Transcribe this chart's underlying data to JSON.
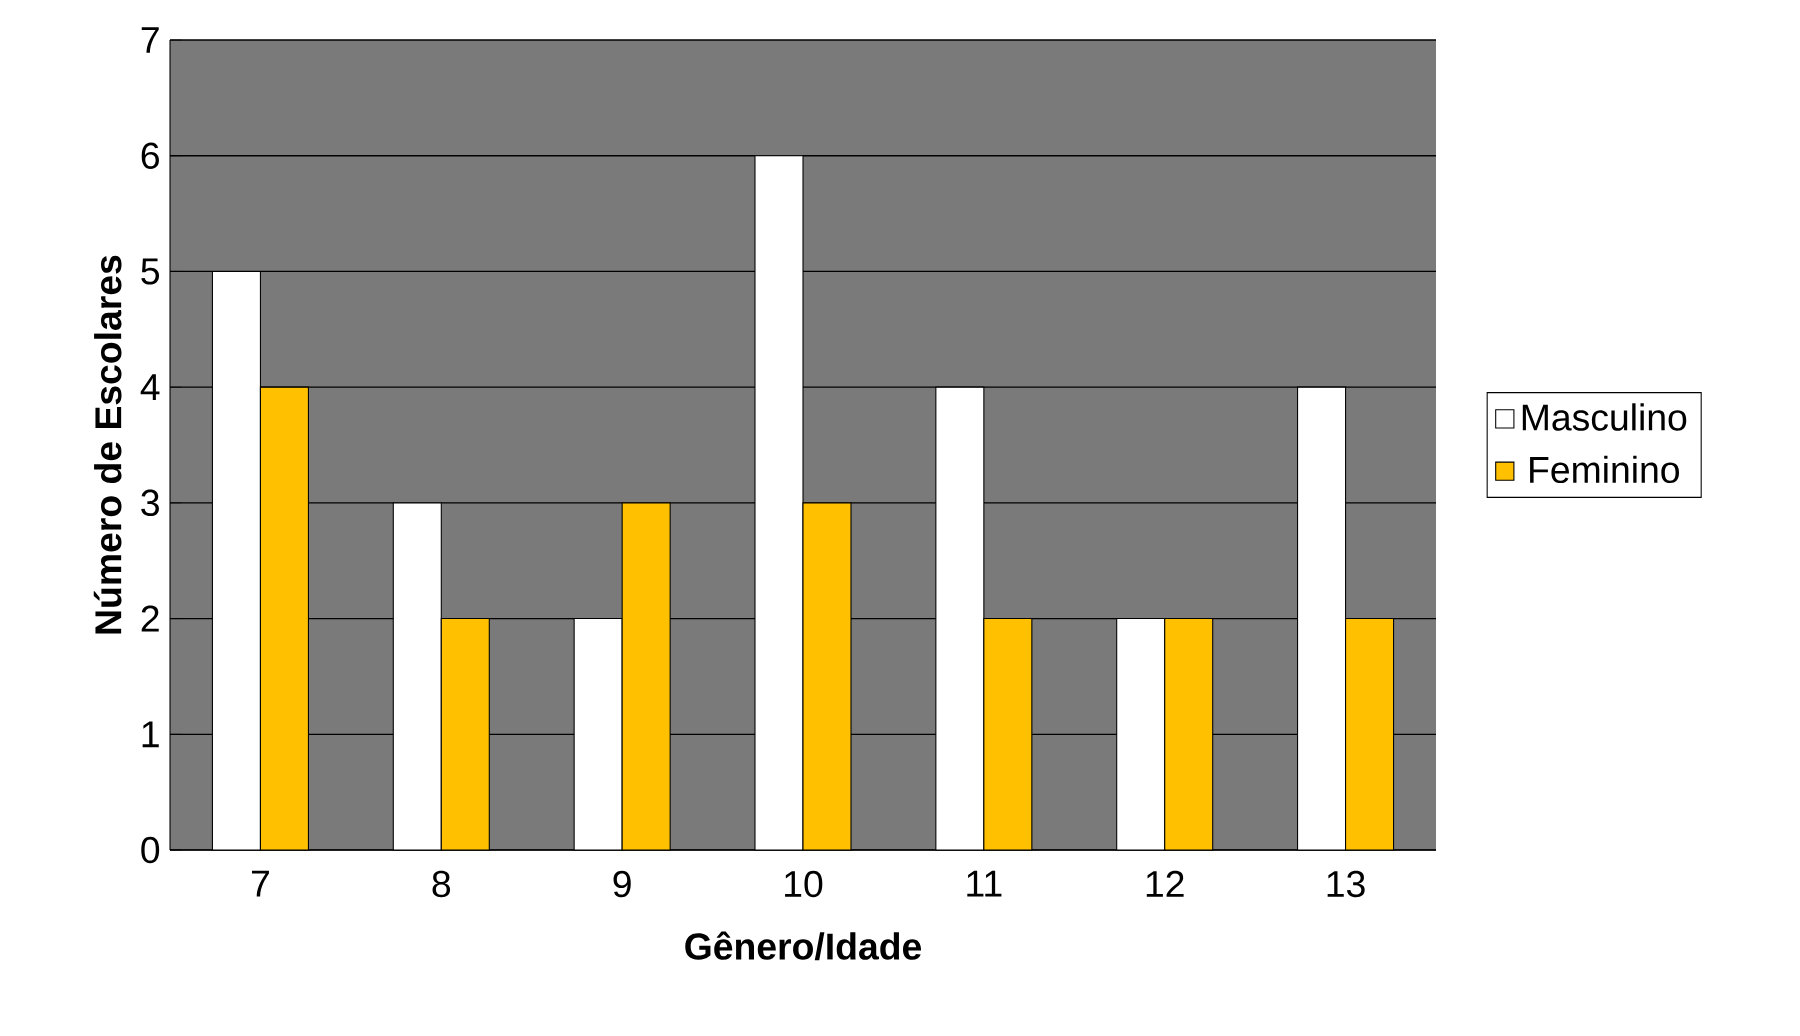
{
  "chart_data": {
    "type": "bar",
    "xlabel": "Gênero/Idade",
    "ylabel": "Número de Escolares",
    "categories": [
      "7",
      "8",
      "9",
      "10",
      "11",
      "12",
      "13"
    ],
    "series": [
      {
        "name": "Masculino",
        "color": "#ffffff",
        "values": [
          5,
          3,
          2,
          6,
          4,
          2,
          4
        ]
      },
      {
        "name": "Feminino",
        "color": "#ffc000",
        "values": [
          4,
          2,
          3,
          3,
          2,
          2,
          2
        ]
      }
    ],
    "ylim": [
      0,
      7
    ],
    "yticks": [
      0,
      1,
      2,
      3,
      4,
      5,
      6,
      7
    ],
    "grid": "y",
    "legend": "right"
  }
}
